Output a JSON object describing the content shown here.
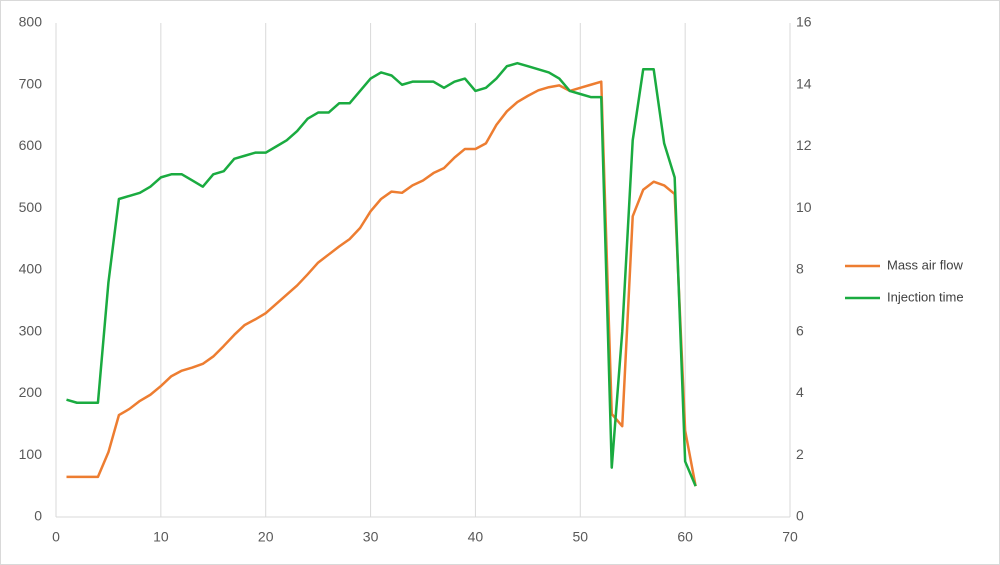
{
  "chart_data": {
    "type": "line",
    "x": [
      1,
      2,
      3,
      4,
      5,
      6,
      7,
      8,
      9,
      10,
      11,
      12,
      13,
      14,
      15,
      16,
      17,
      18,
      19,
      20,
      21,
      22,
      23,
      24,
      25,
      26,
      27,
      28,
      29,
      30,
      31,
      32,
      33,
      34,
      35,
      36,
      37,
      38,
      39,
      40,
      41,
      42,
      43,
      44,
      45,
      46,
      47,
      48,
      49,
      50,
      51,
      52,
      53,
      54,
      55,
      56,
      57,
      58,
      59,
      60,
      61
    ],
    "series": [
      {
        "name": "Mass air flow",
        "color": "#ed7d31",
        "values": [
          65,
          65,
          65,
          65,
          105,
          165,
          175,
          188,
          198,
          212,
          228,
          237,
          242,
          248,
          260,
          277,
          295,
          311,
          320,
          330,
          345,
          360,
          375,
          393,
          412,
          425,
          438,
          450,
          468,
          495,
          515,
          527,
          525,
          537,
          545,
          557,
          565,
          582,
          596,
          596,
          605,
          635,
          657,
          672,
          682,
          691,
          696,
          699,
          690,
          695,
          700,
          705,
          167,
          147,
          487,
          530,
          543,
          537,
          523,
          140,
          50
        ]
      },
      {
        "name": "Injection time",
        "color": "#1aab40",
        "axis": "y2",
        "values": [
          3.8,
          3.7,
          3.7,
          3.7,
          7.6,
          10.3,
          10.4,
          10.5,
          10.7,
          11.0,
          11.1,
          11.1,
          10.9,
          10.7,
          11.1,
          11.2,
          11.6,
          11.7,
          11.8,
          11.8,
          12.0,
          12.2,
          12.5,
          12.9,
          13.1,
          13.1,
          13.4,
          13.4,
          13.8,
          14.2,
          14.4,
          14.3,
          14.0,
          14.1,
          14.1,
          14.1,
          13.9,
          14.1,
          14.2,
          13.8,
          13.9,
          14.2,
          14.6,
          14.7,
          14.6,
          14.5,
          14.4,
          14.2,
          13.8,
          13.7,
          13.6,
          13.6,
          1.6,
          6.0,
          12.2,
          14.5,
          14.5,
          12.1,
          11.0,
          1.8,
          1.0
        ]
      }
    ],
    "xlim": [
      0,
      70
    ],
    "xticks": [
      0,
      10,
      20,
      30,
      40,
      50,
      60,
      70
    ],
    "ylim": [
      0,
      800
    ],
    "yticks": [
      0,
      100,
      200,
      300,
      400,
      500,
      600,
      700,
      800
    ],
    "y2lim": [
      0,
      16
    ],
    "y2ticks": [
      0,
      2,
      4,
      6,
      8,
      10,
      12,
      14,
      16
    ],
    "grid": "x",
    "legend": "right"
  }
}
